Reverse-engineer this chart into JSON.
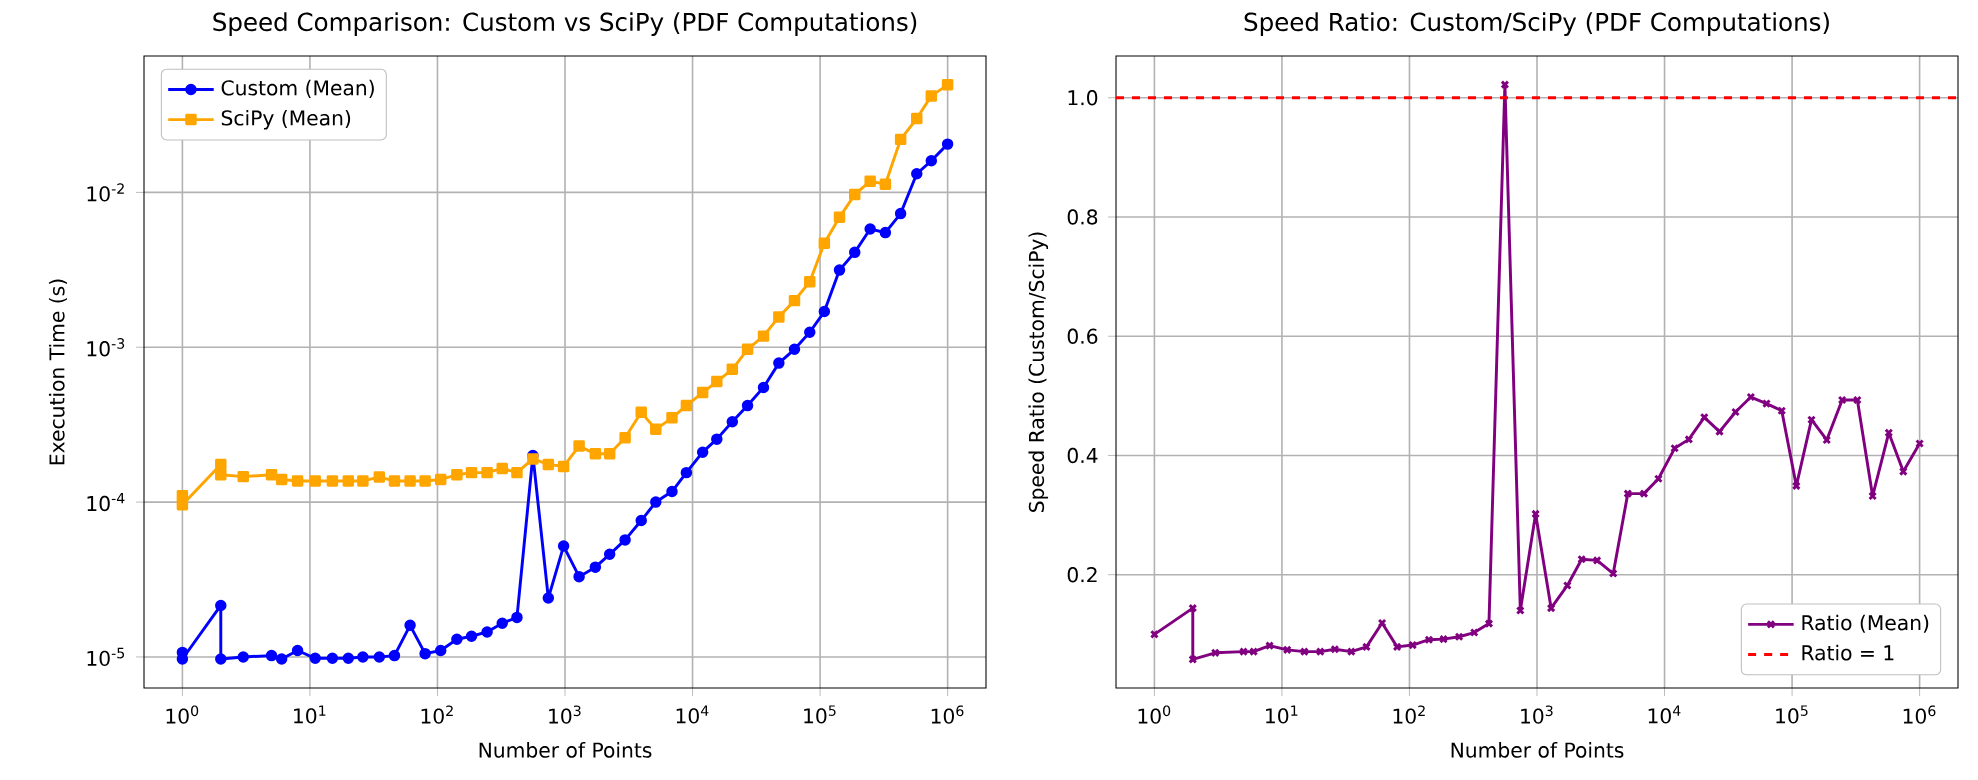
{
  "chart_data": [
    {
      "type": "line",
      "title": "Speed Comparison: Custom vs SciPy (PDF Computations)",
      "xlabel": "Number of Points",
      "ylabel": "Execution Time (s)",
      "log": "xy",
      "grid": true,
      "legend": "top left",
      "xlim": [
        0.5,
        2000000
      ],
      "ylim": [
        6.3e-06,
        0.076
      ],
      "xticks": [
        {
          "value": 1,
          "label": "10$^{0}$"
        },
        {
          "value": 10,
          "label": "10$^{1}$"
        },
        {
          "value": 100,
          "label": "10$^{2}$"
        },
        {
          "value": 1000,
          "label": "10$^{3}$"
        },
        {
          "value": 10000,
          "label": "10$^{4}$"
        },
        {
          "value": 100000,
          "label": "10$^{5}$"
        },
        {
          "value": 1000000,
          "label": "10$^{6}$"
        }
      ],
      "yticks": [
        {
          "value": 1e-05,
          "label": "10$^{-5}$"
        },
        {
          "value": 0.0001,
          "label": "10$^{-4}$"
        },
        {
          "value": 0.001,
          "label": "10$^{-3}$"
        },
        {
          "value": 0.01,
          "label": "10$^{-2}$"
        }
      ],
      "series": [
        {
          "name": "Custom (Mean)",
          "color": "#0000ff",
          "marker": "circle",
          "x": [
            1,
            1,
            2,
            2,
            3,
            5,
            6,
            8,
            11,
            15,
            20,
            26,
            35,
            46,
            61,
            80,
            106,
            142,
            185,
            245,
            322,
            420,
            560,
            740,
            975,
            1290,
            1730,
            2240,
            2960,
            3960,
            5150,
            6900,
            8950,
            12000,
            15500,
            20500,
            27000,
            36000,
            47500,
            63000,
            83000,
            108000,
            142000,
            187000,
            247000,
            325000,
            428000,
            573000,
            745000,
            1000000
          ],
          "values": [
            1.07e-05,
            9.7e-06,
            2.15e-05,
            9.7e-06,
            1e-05,
            1.02e-05,
            9.7e-06,
            1.1e-05,
            9.8e-06,
            9.8e-06,
            9.8e-06,
            1e-05,
            1e-05,
            1.02e-05,
            1.6e-05,
            1.05e-05,
            1.1e-05,
            1.3e-05,
            1.36e-05,
            1.45e-05,
            1.65e-05,
            1.8e-05,
            0.0002,
            2.4e-05,
            5.2e-05,
            3.3e-05,
            3.8e-05,
            4.6e-05,
            5.7e-05,
            7.6e-05,
            0.0001,
            0.000117,
            0.000155,
            0.00021,
            0.000255,
            0.00033,
            0.00042,
            0.00055,
            0.00079,
            0.00097,
            0.00125,
            0.0017,
            0.00315,
            0.0041,
            0.0058,
            0.0055,
            0.0073,
            0.0132,
            0.016,
            0.0205
          ]
        },
        {
          "name": "SciPy (Mean)",
          "color": "#ffa500",
          "marker": "square",
          "x": [
            1,
            1,
            2,
            2,
            3,
            5,
            6,
            8,
            11,
            15,
            20,
            26,
            35,
            46,
            61,
            80,
            106,
            142,
            185,
            245,
            322,
            420,
            560,
            740,
            975,
            1290,
            1730,
            2240,
            2960,
            3960,
            5150,
            6900,
            8950,
            12000,
            15500,
            20500,
            27000,
            36000,
            47500,
            63000,
            83000,
            108000,
            142000,
            187000,
            247000,
            325000,
            428000,
            573000,
            745000,
            1000000
          ],
          "values": [
            0.00011,
            9.6e-05,
            0.000175,
            0.00015,
            0.000146,
            0.00015,
            0.00014,
            0.000137,
            0.000137,
            0.000137,
            0.000137,
            0.000137,
            0.000145,
            0.000137,
            0.000137,
            0.000137,
            0.00014,
            0.00015,
            0.000155,
            0.000155,
            0.000165,
            0.000155,
            0.00019,
            0.000175,
            0.00017,
            0.00023,
            0.000205,
            0.000205,
            0.00026,
            0.00038,
            0.000295,
            0.00035,
            0.00042,
            0.00051,
            0.0006,
            0.00072,
            0.00097,
            0.00118,
            0.00157,
            0.002,
            0.00265,
            0.0047,
            0.0069,
            0.0097,
            0.0118,
            0.0113,
            0.022,
            0.03,
            0.042,
            0.0495
          ]
        }
      ]
    },
    {
      "type": "line",
      "title": "Speed Ratio: Custom/SciPy (PDF Computations)",
      "xlabel": "Number of Points",
      "ylabel": "Speed Ratio (Custom/SciPy)",
      "log": "x",
      "grid": true,
      "legend": "bottom right",
      "xlim": [
        0.5,
        2000000
      ],
      "ylim": [
        0.01,
        1.07
      ],
      "xticks": [
        {
          "value": 1,
          "label": "10$^{0}$"
        },
        {
          "value": 10,
          "label": "10$^{1}$"
        },
        {
          "value": 100,
          "label": "10$^{2}$"
        },
        {
          "value": 1000,
          "label": "10$^{3}$"
        },
        {
          "value": 10000,
          "label": "10$^{4}$"
        },
        {
          "value": 100000,
          "label": "10$^{5}$"
        },
        {
          "value": 1000000,
          "label": "10$^{6}$"
        }
      ],
      "yticks": [
        {
          "value": 0.2,
          "label": "0.2"
        },
        {
          "value": 0.4,
          "label": "0.4"
        },
        {
          "value": 0.6,
          "label": "0.6"
        },
        {
          "value": 0.8,
          "label": "0.8"
        },
        {
          "value": 1,
          "label": "1.0"
        }
      ],
      "ref_lines": [
        {
          "axis": "y",
          "value": 1,
          "label": "Ratio = 1",
          "color": "#ff0000",
          "line_style": "dashed"
        }
      ],
      "series": [
        {
          "name": "Ratio (Mean)",
          "color": "#800080",
          "marker": "cross",
          "x": [
            1,
            2,
            2,
            3,
            5,
            6,
            8,
            11,
            15,
            20,
            26,
            35,
            46,
            61,
            80,
            106,
            142,
            185,
            245,
            322,
            420,
            560,
            740,
            975,
            1290,
            1730,
            2240,
            2960,
            3960,
            5150,
            6900,
            8950,
            12000,
            15500,
            20500,
            27000,
            36000,
            47500,
            63000,
            83000,
            108000,
            142000,
            187000,
            247000,
            325000,
            428000,
            573000,
            745000,
            1000000
          ],
          "values": [
            0.1,
            0.144,
            0.058,
            0.069,
            0.071,
            0.071,
            0.081,
            0.074,
            0.071,
            0.071,
            0.075,
            0.071,
            0.079,
            0.119,
            0.079,
            0.082,
            0.091,
            0.092,
            0.096,
            0.103,
            0.118,
            1.022,
            0.14,
            0.302,
            0.144,
            0.182,
            0.226,
            0.224,
            0.202,
            0.336,
            0.336,
            0.361,
            0.412,
            0.427,
            0.464,
            0.44,
            0.473,
            0.498,
            0.487,
            0.475,
            0.349,
            0.46,
            0.426,
            0.493,
            0.493,
            0.332,
            0.438,
            0.373,
            0.42
          ]
        }
      ]
    }
  ]
}
